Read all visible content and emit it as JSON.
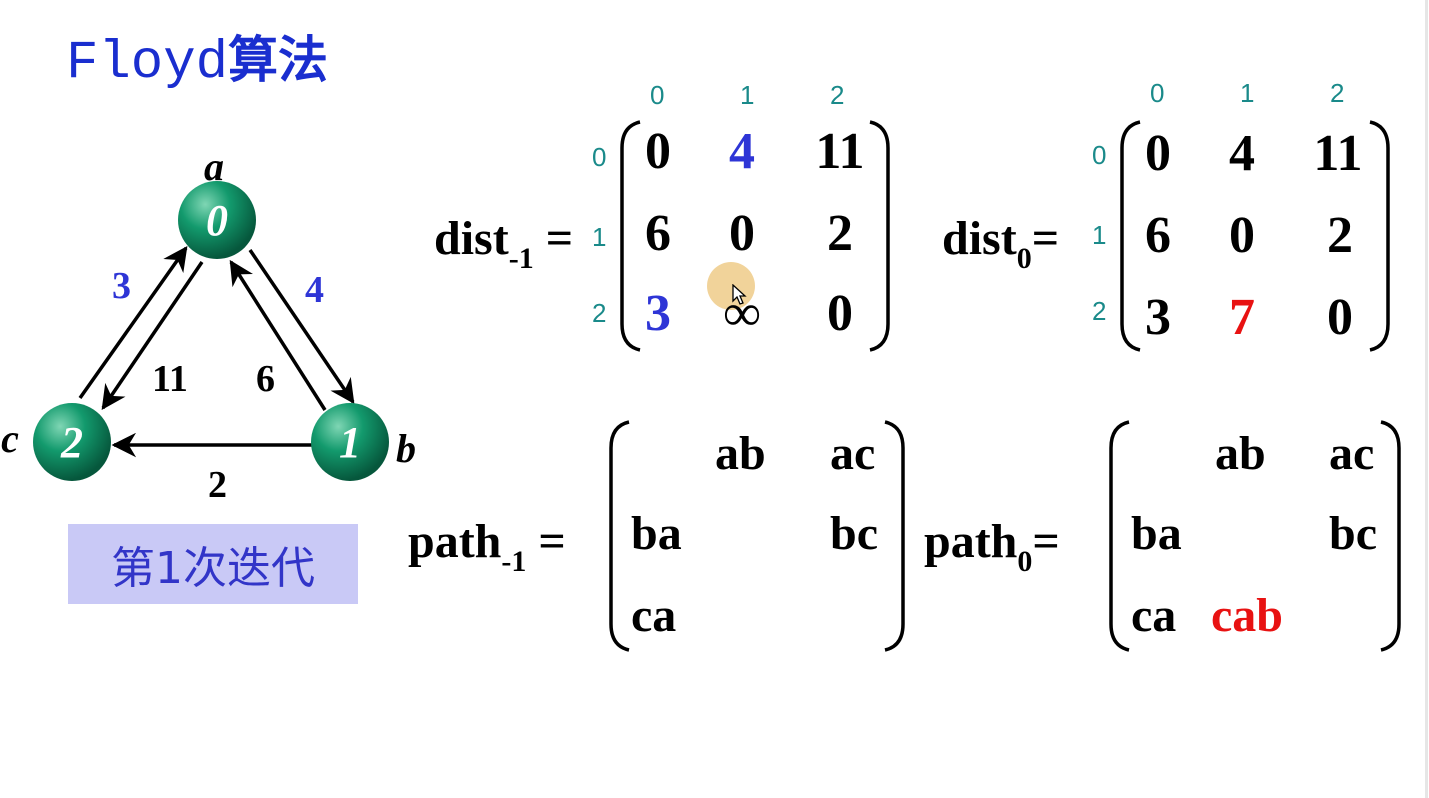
{
  "title": {
    "latin": "Floyd",
    "cjk": "算法"
  },
  "graph": {
    "nodes": [
      {
        "id": "0",
        "label": "a"
      },
      {
        "id": "1",
        "label": "b"
      },
      {
        "id": "2",
        "label": "c"
      }
    ],
    "edges": [
      {
        "from": "2",
        "to": "0",
        "weight": "3",
        "color": "#2e35d6"
      },
      {
        "from": "0",
        "to": "1",
        "weight": "4",
        "color": "#2e35d6"
      },
      {
        "from": "0",
        "to": "2",
        "weight": "11",
        "color": "#000000"
      },
      {
        "from": "1",
        "to": "0",
        "weight": "6",
        "color": "#000000"
      },
      {
        "from": "1",
        "to": "2",
        "weight": "2",
        "color": "#000000"
      }
    ],
    "node_color": "#0e8a62"
  },
  "iteration_label": "第1次迭代",
  "dist_prev": {
    "name": "dist",
    "sub": "-1",
    "eq": "=",
    "col_idx": [
      "0",
      "1",
      "2"
    ],
    "row_idx": [
      "0",
      "1",
      "2"
    ],
    "rows": [
      [
        "0",
        "4",
        "11"
      ],
      [
        "6",
        "0",
        "2"
      ],
      [
        "3",
        "∞",
        "0"
      ]
    ]
  },
  "dist_curr": {
    "name": "dist",
    "sub": "0",
    "eq": "=",
    "col_idx": [
      "0",
      "1",
      "2"
    ],
    "row_idx": [
      "0",
      "1",
      "2"
    ],
    "rows": [
      [
        "0",
        "4",
        "11"
      ],
      [
        "6",
        "0",
        "2"
      ],
      [
        "3",
        "7",
        "0"
      ]
    ]
  },
  "path_prev": {
    "name": "path",
    "sub": "-1",
    "eq": "=",
    "rows": [
      [
        "",
        "ab",
        "ac"
      ],
      [
        "ba",
        "",
        "bc"
      ],
      [
        "ca",
        "",
        ""
      ]
    ]
  },
  "path_curr": {
    "name": "path",
    "sub": "0",
    "eq": "=",
    "rows": [
      [
        "",
        "ab",
        "ac"
      ],
      [
        "ba",
        "",
        "bc"
      ],
      [
        "ca",
        "cab",
        ""
      ]
    ]
  },
  "colors": {
    "title": "#1a2ecf",
    "highlight_blue": "#2e35d6",
    "highlight_red": "#e81212",
    "index": "#1a8a8a",
    "badge_bg": "#c9c9f6"
  }
}
